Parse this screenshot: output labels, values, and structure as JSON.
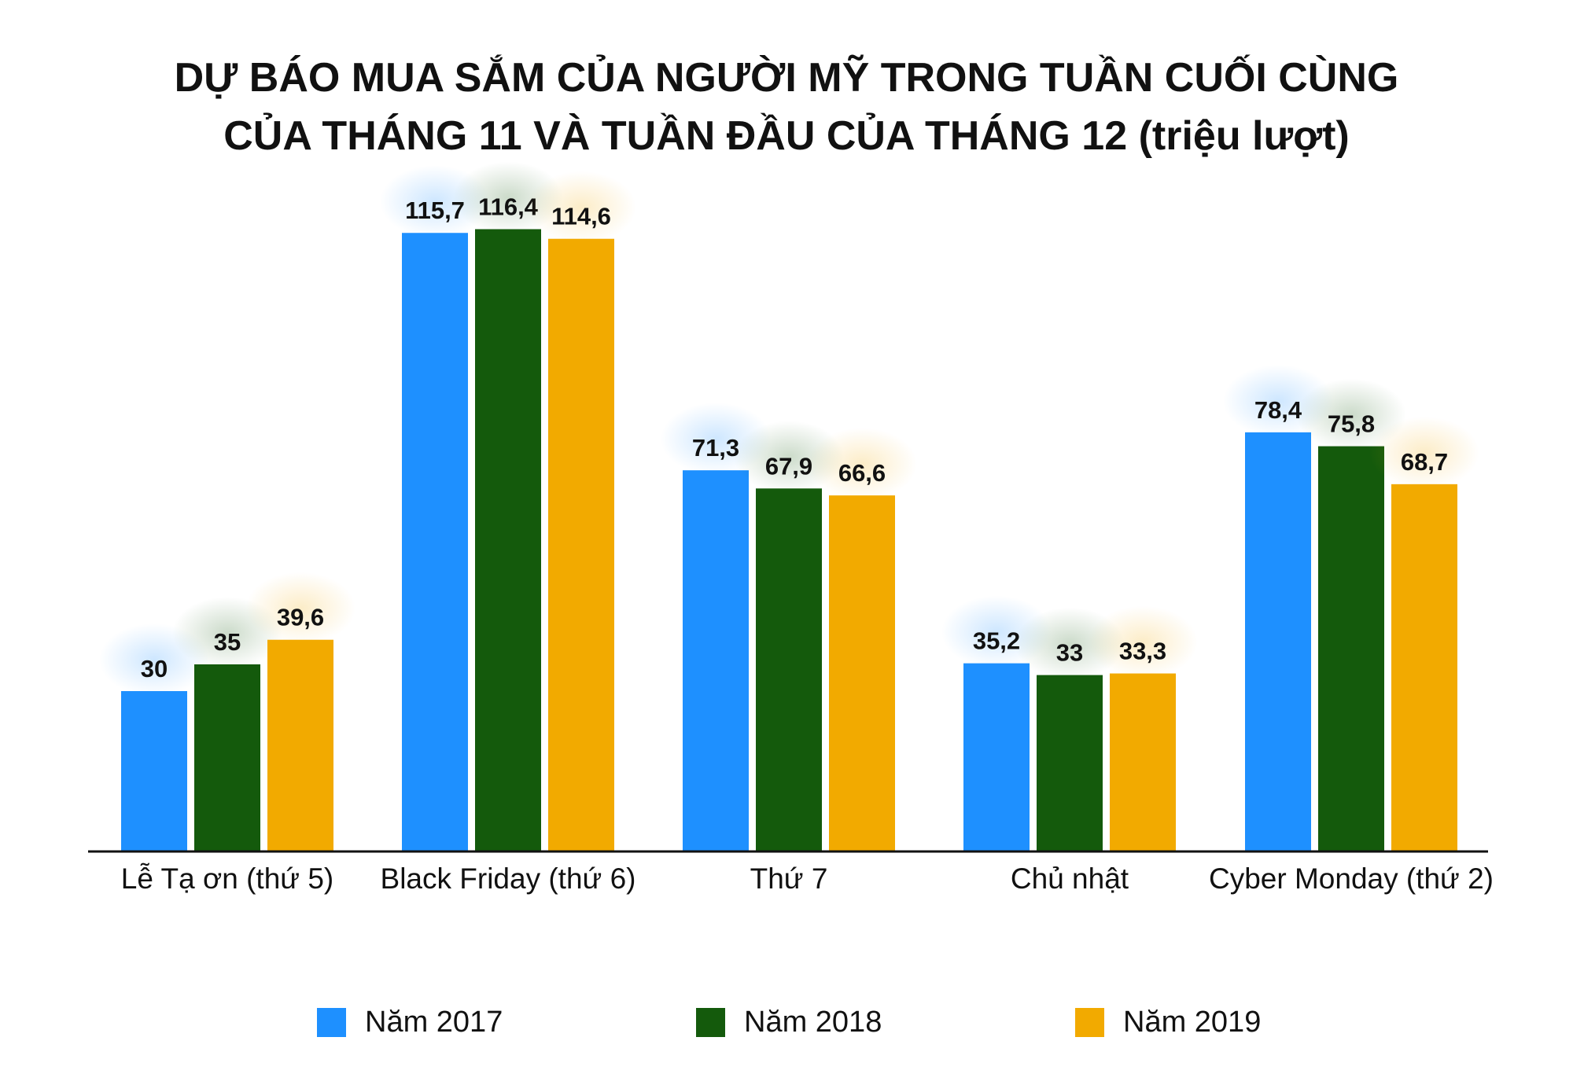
{
  "chart_data": {
    "type": "bar",
    "title": "DỰ BÁO MUA SẮM CỦA NGƯỜI MỸ TRONG TUẦN CUỐI CÙNG CỦA THÁNG 11 VÀ TUẦN ĐẦU CỦA THÁNG 12 (triệu lượt)",
    "title_lines": [
      "DỰ BÁO MUA SẮM CỦA NGƯỜI MỸ TRONG TUẦN CUỐI CÙNG",
      "CỦA THÁNG 11 VÀ TUẦN ĐẦU CỦA THÁNG 12 (triệu lượt)"
    ],
    "categories": [
      "Lễ Tạ ơn (thứ 5)",
      "Black Friday (thứ 6)",
      "Thứ 7",
      "Chủ nhật",
      "Cyber Monday (thứ 2)"
    ],
    "series": [
      {
        "name": "Năm 2017",
        "color": "#1e90ff",
        "values": [
          30,
          115.7,
          71.3,
          35.2,
          78.4
        ],
        "labels": [
          "30",
          "115,7",
          "71,3",
          "35,2",
          "78,4"
        ]
      },
      {
        "name": "Năm 2018",
        "color": "#145a0c",
        "values": [
          35,
          116.4,
          67.9,
          33,
          75.8
        ],
        "labels": [
          "35",
          "116,4",
          "67,9",
          "33",
          "75,8"
        ]
      },
      {
        "name": "Năm 2019",
        "color": "#f2aa00",
        "values": [
          39.6,
          114.6,
          66.6,
          33.3,
          68.7
        ],
        "labels": [
          "39,6",
          "114,6",
          "66,6",
          "33,3",
          "68,7"
        ]
      }
    ],
    "ylim": [
      0,
      120
    ],
    "xlabel": "",
    "ylabel": "",
    "grid": false,
    "legend_position": "bottom"
  }
}
